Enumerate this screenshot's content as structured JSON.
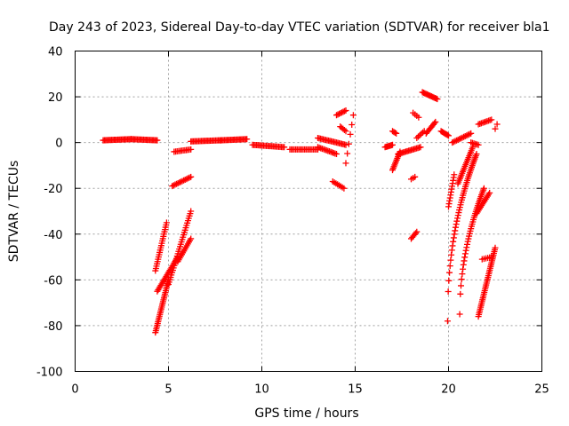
{
  "chart_data": {
    "type": "scatter",
    "title": "Day 243 of 2023, Sidereal Day-to-day VTEC variation (SDTVAR) for receiver bla1",
    "xlabel": "GPS time / hours",
    "ylabel": "SDTVAR / TECUs",
    "xlim": [
      0,
      25
    ],
    "ylim": [
      -100,
      40
    ],
    "xticks": [
      "0",
      "5",
      "10",
      "15",
      "20",
      "25"
    ],
    "yticks": [
      "-100",
      "-80",
      "-60",
      "-40",
      "-20",
      "0",
      "20",
      "40"
    ],
    "grid": true,
    "marker": "+",
    "series": [
      {
        "name": "SDTVAR",
        "color": "#ff0000",
        "segments": [
          {
            "x0": 1.5,
            "y0": 1,
            "x1": 3.0,
            "y1": 1.5,
            "n": 24
          },
          {
            "x0": 3.0,
            "y0": 1.5,
            "x1": 4.4,
            "y1": 1,
            "n": 22
          },
          {
            "x0": 4.3,
            "y0": -56,
            "x1": 4.9,
            "y1": -35,
            "n": 22
          },
          {
            "x0": 4.3,
            "y0": -83,
            "x1": 5.0,
            "y1": -60,
            "n": 30
          },
          {
            "x0": 4.4,
            "y0": -65,
            "x1": 5.5,
            "y1": -50,
            "n": 24
          },
          {
            "x0": 5.0,
            "y0": -62,
            "x1": 6.2,
            "y1": -30,
            "n": 32
          },
          {
            "x0": 5.5,
            "y0": -52,
            "x1": 6.2,
            "y1": -42,
            "n": 14
          },
          {
            "x0": 5.2,
            "y0": -19,
            "x1": 6.2,
            "y1": -15,
            "n": 14
          },
          {
            "x0": 5.3,
            "y0": -4,
            "x1": 6.2,
            "y1": -3,
            "n": 12
          },
          {
            "x0": 6.2,
            "y0": 0.5,
            "x1": 7.8,
            "y1": 1,
            "n": 24
          },
          {
            "x0": 7.8,
            "y0": 1,
            "x1": 9.2,
            "y1": 1.5,
            "n": 22
          },
          {
            "x0": 9.5,
            "y0": -1,
            "x1": 11.2,
            "y1": -2,
            "n": 24
          },
          {
            "x0": 11.5,
            "y0": -3,
            "x1": 13.0,
            "y1": -3,
            "n": 20
          },
          {
            "x0": 13.0,
            "y0": 2,
            "x1": 14.5,
            "y1": -1,
            "n": 22
          },
          {
            "x0": 13.0,
            "y0": -2,
            "x1": 14.0,
            "y1": -5,
            "n": 14
          },
          {
            "x0": 14.0,
            "y0": 12,
            "x1": 14.5,
            "y1": 14,
            "n": 8
          },
          {
            "x0": 14.2,
            "y0": 7,
            "x1": 14.5,
            "y1": 5,
            "n": 5
          },
          {
            "x0": 13.8,
            "y0": -17,
            "x1": 14.4,
            "y1": -20,
            "n": 8
          },
          {
            "x0": 14.5,
            "y0": -9,
            "x1": 14.9,
            "y1": 12,
            "n": 6
          },
          {
            "x0": 16.6,
            "y0": -2,
            "x1": 17.0,
            "y1": -1,
            "n": 8
          },
          {
            "x0": 17.0,
            "y0": 5,
            "x1": 17.2,
            "y1": 4,
            "n": 4
          },
          {
            "x0": 17.0,
            "y0": -12,
            "x1": 17.4,
            "y1": -4,
            "n": 12
          },
          {
            "x0": 17.3,
            "y0": -5,
            "x1": 18.5,
            "y1": -2,
            "n": 18
          },
          {
            "x0": 18.0,
            "y0": -42,
            "x1": 18.3,
            "y1": -39,
            "n": 6
          },
          {
            "x0": 18.0,
            "y0": -16,
            "x1": 18.2,
            "y1": -15,
            "n": 3
          },
          {
            "x0": 18.1,
            "y0": 13,
            "x1": 18.4,
            "y1": 11,
            "n": 4
          },
          {
            "x0": 18.3,
            "y0": 2,
            "x1": 18.7,
            "y1": 5,
            "n": 6
          },
          {
            "x0": 18.6,
            "y0": 22,
            "x1": 19.4,
            "y1": 19,
            "n": 14
          },
          {
            "x0": 18.8,
            "y0": 4,
            "x1": 19.3,
            "y1": 9,
            "n": 10
          },
          {
            "x0": 19.6,
            "y0": 5,
            "x1": 20.0,
            "y1": 3,
            "n": 8
          },
          {
            "x0": 20.0,
            "y0": -28,
            "x1": 20.3,
            "y1": -14,
            "n": 12
          },
          {
            "x0": 20.2,
            "y0": 0,
            "x1": 21.2,
            "y1": 4,
            "n": 14
          },
          {
            "x0": 20.5,
            "y0": -18,
            "x1": 21.3,
            "y1": -2,
            "n": 22
          },
          {
            "x0": 21.2,
            "y0": 0,
            "x1": 21.6,
            "y1": -1,
            "n": 6
          },
          {
            "x0": 21.5,
            "y0": -31,
            "x1": 22.2,
            "y1": -22,
            "n": 14
          },
          {
            "x0": 21.6,
            "y0": -76,
            "x1": 22.5,
            "y1": -46,
            "n": 38
          },
          {
            "x0": 21.8,
            "y0": -51,
            "x1": 22.3,
            "y1": -50,
            "n": 6
          },
          {
            "x0": 21.6,
            "y0": 8,
            "x1": 22.3,
            "y1": 10,
            "n": 10
          },
          {
            "x0": 22.5,
            "y0": 6,
            "x1": 22.6,
            "y1": 8,
            "n": 2
          }
        ],
        "curves": [
          {
            "x0": 19.95,
            "y0": -78,
            "x1": 21.5,
            "y1": -5,
            "power": 0.45,
            "n": 48
          },
          {
            "x0": 20.6,
            "y0": -75,
            "x1": 21.9,
            "y1": -20,
            "power": 0.5,
            "n": 40
          }
        ]
      }
    ]
  }
}
